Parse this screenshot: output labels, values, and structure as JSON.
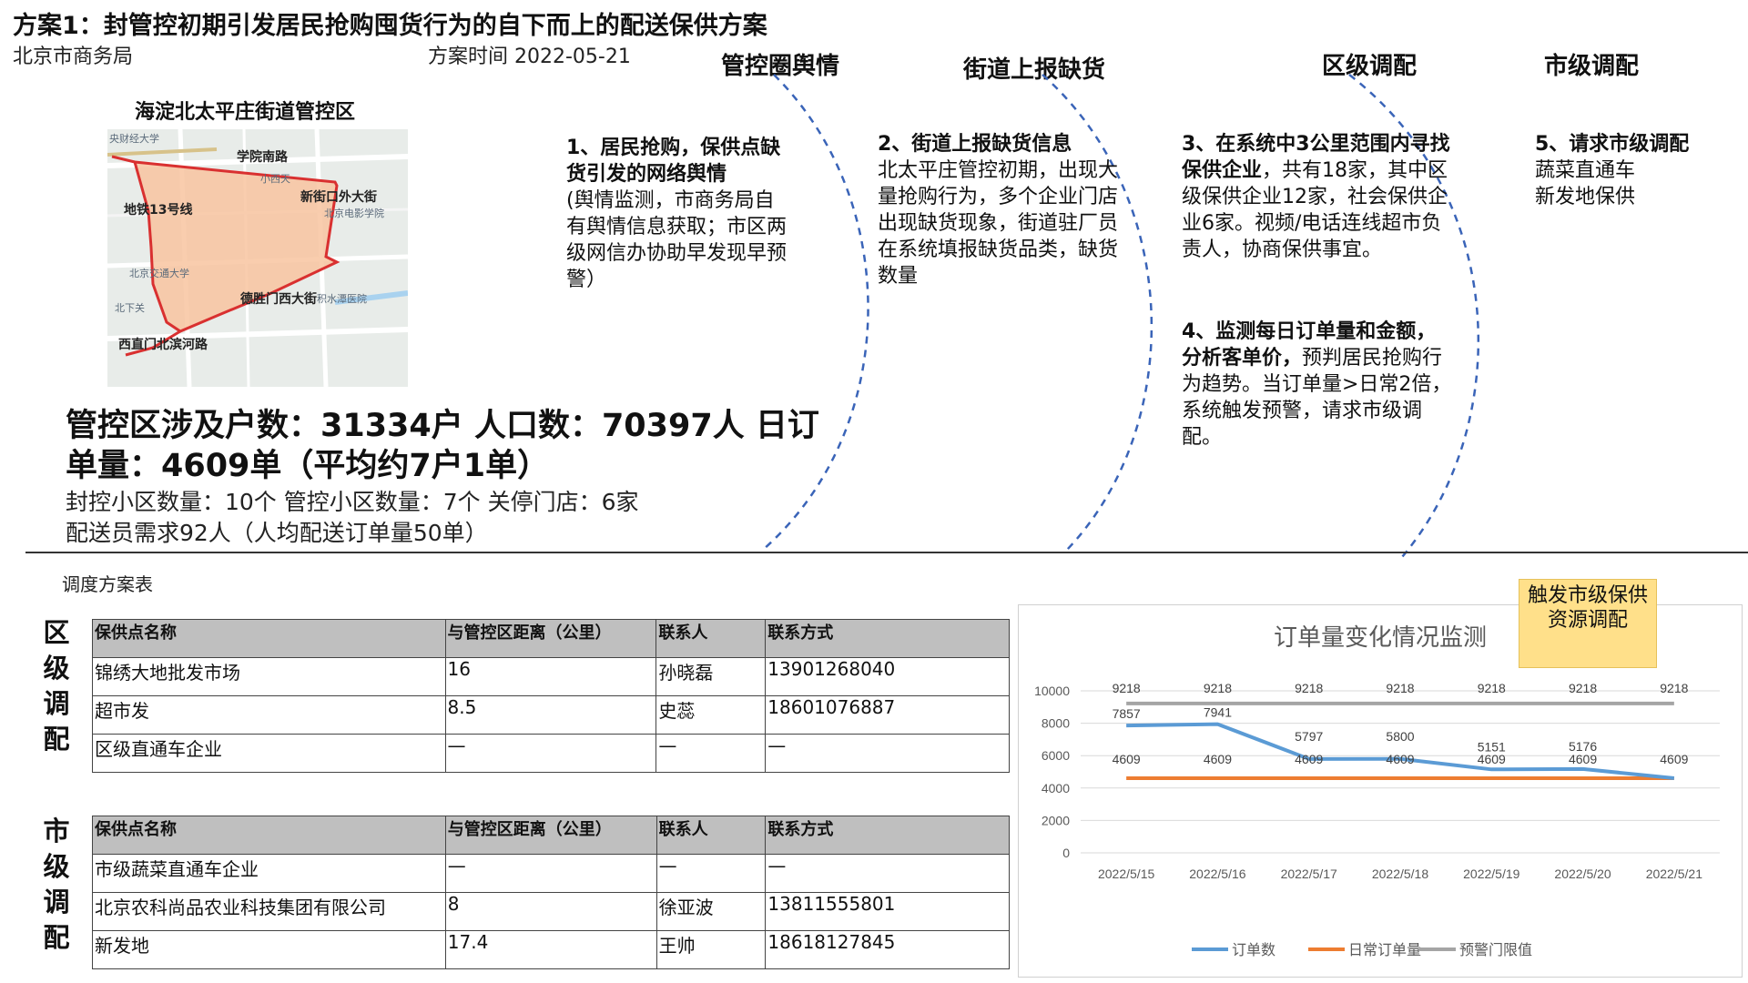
{
  "header": {
    "title": "方案1：封管控初期引发居民抢购囤货行为的自下而上的配送保供方案",
    "org": "北京市商务局",
    "date": "方案时间 2022-05-21"
  },
  "stages": [
    "管控圈舆情",
    "街道上报缺货",
    "区级调配",
    "市级调配"
  ],
  "map": {
    "title": "海淀北太平庄街道管控区",
    "labels": [
      "学院南路",
      "新街口外大街",
      "地铁13号线",
      "德胜门西大街",
      "西直门北滨河路"
    ],
    "minor_labels": [
      "央财经大学",
      "小西天",
      "北京电影学院",
      "北下关",
      "北京交通大学",
      "积水潭医院"
    ],
    "fill_color": "#f8c4a0",
    "border_color": "#d93030"
  },
  "steps": {
    "s1_title": "1、居民抢购，保供点缺货引发的网络舆情",
    "s1_body": "(舆情监测，市商务局自有舆情信息获取；市区两级网信办协助早发现早预警）",
    "s2_title": "2、街道上报缺货信息",
    "s2_body": "北太平庄管控初期，出现大量抢购行为，多个企业门店出现缺货现象，街道驻厂员在系统填报缺货品类，缺货数量",
    "s3_a": "3、在系统中3公里范围内寻找保供企业",
    "s3_b": "，共有18家，其中区级保供企业12家，社会保供企业6家。视频/电话连线超市负责人，协商保供事宜。",
    "s4_a": "4、监测每日订单量和金额，分析客单价，",
    "s4_b": "预判居民抢购行为趋势。当订单量>日常2倍，系统触发预警，请求市级调配。",
    "s5_title": "5、请求市级调配",
    "s5_l1": "蔬菜直通车",
    "s5_l2": "新发地保供"
  },
  "stats": {
    "big": "管控区涉及户数：31334户  人口数：70397人  日订单量：4609单（平均约7户1单）",
    "line1": "封控小区数量：10个 管控小区数量：7个    关停门店：6家",
    "line2": "配送员需求92人（人均配送订单量50单）"
  },
  "table_caption": "调度方案表",
  "district": {
    "label": "区级调配",
    "header": [
      "保供点名称",
      "与管控区距离（公里）",
      "联系人",
      "联系方式"
    ],
    "rows": [
      [
        "锦绣大地批发市场",
        "16",
        "孙晓磊",
        "13901268040"
      ],
      [
        "超市发",
        "8.5",
        "史蕊",
        "18601076887"
      ],
      [
        "区级直通车企业",
        "—",
        "—",
        "—"
      ]
    ]
  },
  "city": {
    "label": "市级调配",
    "header": [
      "保供点名称",
      "与管控区距离（公里）",
      "联系人",
      "联系方式"
    ],
    "rows": [
      [
        "市级蔬菜直通车企业",
        "—",
        "—",
        "—"
      ],
      [
        "北京农科尚品农业科技集团有限公司",
        "8",
        "徐亚波",
        "13811555801"
      ],
      [
        "新发地",
        "17.4",
        "王帅",
        "18618127845"
      ]
    ]
  },
  "callout": "触发市级保供资源调配",
  "chart_data": {
    "type": "line",
    "title": "订单量变化情况监测",
    "categories": [
      "2022/5/15",
      "2022/5/16",
      "2022/5/17",
      "2022/5/18",
      "2022/5/19",
      "2022/5/20",
      "2022/5/21"
    ],
    "series": [
      {
        "name": "订单数",
        "values": [
          7857,
          7941,
          5797,
          5800,
          5151,
          5176,
          4609
        ],
        "color": "#5b9bd5"
      },
      {
        "name": "日常订单量",
        "values": [
          4609,
          4609,
          4609,
          4609,
          4609,
          4609,
          4609
        ],
        "color": "#ed7d31"
      },
      {
        "name": "预警门限值",
        "values": [
          9218,
          9218,
          9218,
          9218,
          9218,
          9218,
          9218
        ],
        "color": "#a5a5a5"
      }
    ],
    "ylim": [
      0,
      10000
    ],
    "yticks": [
      0,
      2000,
      4000,
      6000,
      8000,
      10000
    ],
    "grid": true,
    "legend": "bottom"
  }
}
